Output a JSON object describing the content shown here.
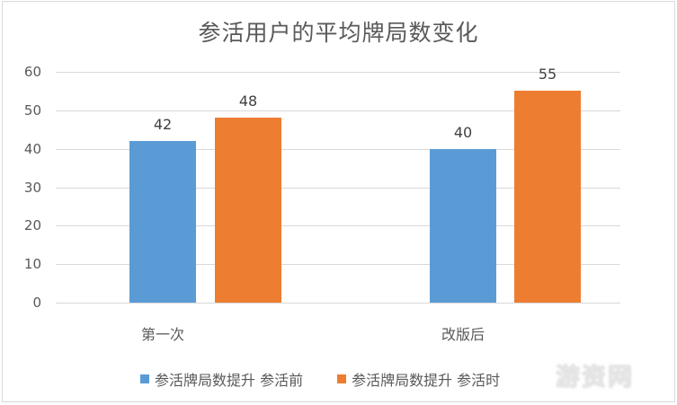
{
  "chart_data": {
    "type": "bar",
    "title": "参活用户的平均牌局数变化",
    "xlabel": "",
    "ylabel": "",
    "ylim": [
      0,
      60
    ],
    "yticks": [
      0,
      10,
      20,
      30,
      40,
      50,
      60
    ],
    "grid": true,
    "legend_position": "bottom",
    "categories": [
      "第一次",
      "改版后"
    ],
    "series": [
      {
        "name": "参活牌局数提升 参活前",
        "color": "#5B9BD5",
        "values": [
          42,
          40
        ]
      },
      {
        "name": "参活牌局数提升 参活时",
        "color": "#ED7D31",
        "values": [
          48,
          55
        ]
      }
    ],
    "data_labels": true
  },
  "yticks_text": [
    "0",
    "10",
    "20",
    "30",
    "40",
    "50",
    "60"
  ],
  "bar_labels": [
    "42",
    "48",
    "40",
    "55"
  ],
  "watermark": "游资网"
}
